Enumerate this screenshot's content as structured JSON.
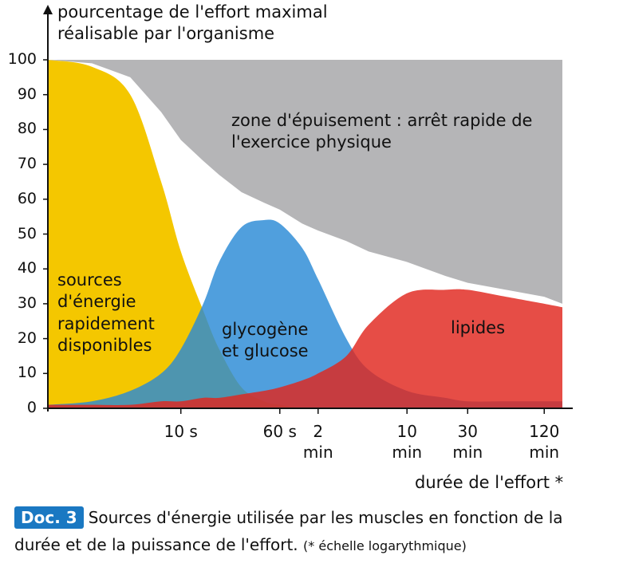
{
  "chart_data": {
    "type": "area",
    "y_label": "pourcentage de l'effort maximal réalisable par l'organisme",
    "x_label": "durée de l'effort *",
    "x_log": true,
    "xlim": [
      0.9,
      10000
    ],
    "xticks": [
      {
        "value": 10,
        "label": "10 s"
      },
      {
        "value": 60,
        "label": "60 s"
      },
      {
        "value": 120,
        "label": "2 min"
      },
      {
        "value": 600,
        "label": "10 min"
      },
      {
        "value": 1800,
        "label": "30 min"
      },
      {
        "value": 7200,
        "label": "120 min"
      }
    ],
    "ylim": [
      0,
      100
    ],
    "yticks": [
      0,
      10,
      20,
      30,
      40,
      50,
      60,
      70,
      80,
      90,
      100
    ],
    "x": [
      0.9,
      2,
      4,
      7,
      10,
      15,
      20,
      30,
      45,
      60,
      90,
      120,
      200,
      300,
      600,
      1200,
      1800,
      3600,
      7200,
      10000
    ],
    "zone": {
      "name": "zone d'épuisement : arrêt rapide de l'exercice physique",
      "color": "#b5b5b7",
      "values": [
        100,
        99,
        95,
        85,
        77,
        71,
        67,
        62,
        59,
        57,
        53,
        51,
        48,
        45,
        42,
        38,
        36,
        34,
        32,
        30
      ]
    },
    "series": [
      {
        "name": "sources d'énergie rapidement disponibles",
        "color": "#f4c700",
        "values": [
          100,
          98,
          90,
          65,
          45,
          28,
          17,
          6,
          2,
          1,
          0,
          0,
          0,
          0,
          0,
          0,
          0,
          0,
          0,
          0
        ]
      },
      {
        "name": "glycogène et glucose",
        "color": "#2a8ad6",
        "values": [
          1,
          2,
          5,
          10,
          17,
          30,
          42,
          52,
          54,
          53,
          46,
          37,
          20,
          11,
          5,
          3,
          2,
          2,
          2,
          2
        ]
      },
      {
        "name": "lipides",
        "color": "#e0261d",
        "values": [
          1,
          1,
          1,
          2,
          2,
          3,
          3,
          4,
          5,
          6,
          8,
          10,
          15,
          24,
          33,
          34,
          34,
          32,
          30,
          29
        ]
      }
    ],
    "caption": {
      "label": "Doc. 3",
      "text": "Sources d'énergie utilisée par les muscles en fonction de la durée et de la puissance de l'effort.",
      "note": "(* échelle logarythmique)"
    }
  }
}
